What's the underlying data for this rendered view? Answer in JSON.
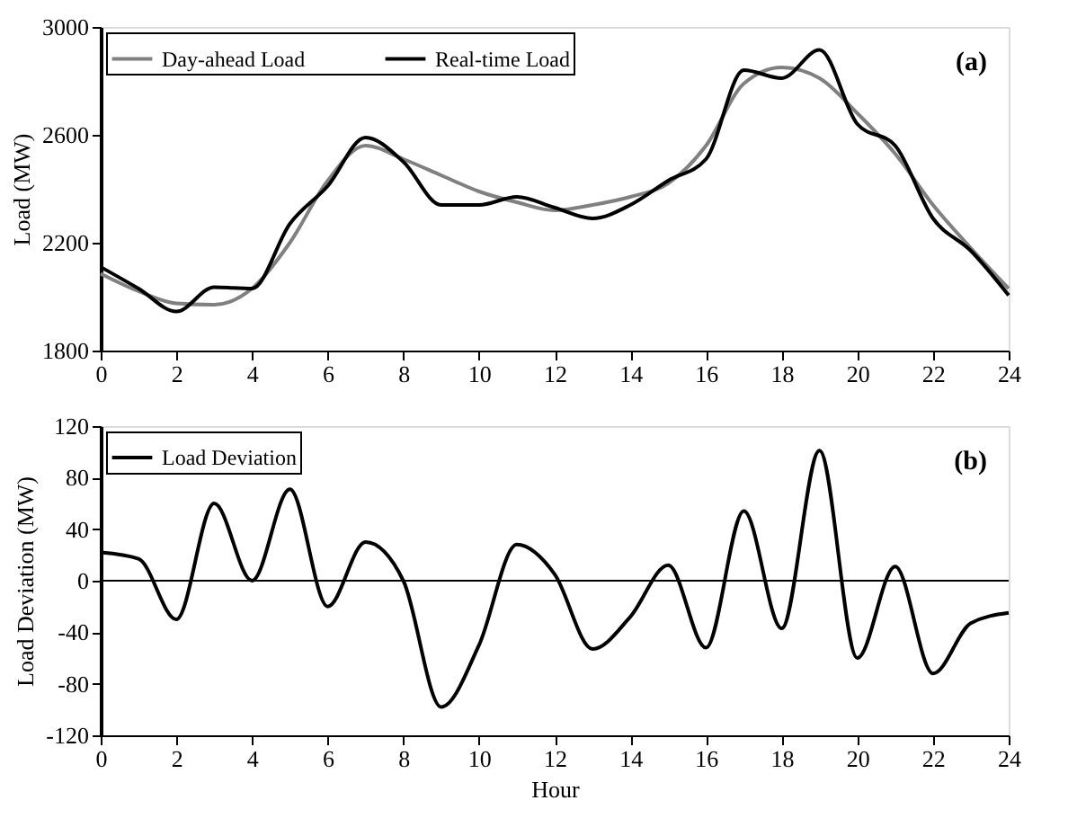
{
  "chart_data": [
    {
      "type": "line",
      "ylabel": "Load (MW)",
      "annotations": [
        "(a)"
      ],
      "xlim": [
        0,
        24
      ],
      "xticks": [
        0,
        2,
        4,
        6,
        8,
        10,
        12,
        14,
        16,
        18,
        20,
        22,
        24
      ],
      "ylim": [
        1800,
        3000
      ],
      "yticks": [
        1800,
        2200,
        2600,
        3000
      ],
      "grid": false,
      "legend": "top left",
      "marker": "none",
      "line_style": "solid",
      "x": [
        0,
        1,
        2,
        3,
        4,
        5,
        6,
        7,
        8,
        9,
        10,
        11,
        12,
        13,
        14,
        15,
        16,
        17,
        18,
        19,
        20,
        21,
        22,
        23,
        24
      ],
      "series": [
        {
          "name": "Day-ahead Load",
          "color": "#808080",
          "values": [
            2085,
            2020,
            1975,
            1970,
            2030,
            2200,
            2430,
            2560,
            2510,
            2450,
            2390,
            2350,
            2320,
            2340,
            2370,
            2420,
            2560,
            2790,
            2850,
            2810,
            2680,
            2530,
            2340,
            2180,
            2030
          ]
        },
        {
          "name": "Real-time Load",
          "color": "#000000",
          "values": [
            2110,
            2030,
            1945,
            2035,
            2030,
            2270,
            2410,
            2590,
            2500,
            2340,
            2340,
            2370,
            2330,
            2290,
            2340,
            2430,
            2510,
            2840,
            2810,
            2915,
            2640,
            2560,
            2290,
            2170,
            2005
          ]
        }
      ]
    },
    {
      "type": "line",
      "xlabel": "Hour",
      "ylabel": "Load  Deviation (MW)",
      "annotations": [
        "(b)"
      ],
      "xlim": [
        0,
        24
      ],
      "xticks": [
        0,
        2,
        4,
        6,
        8,
        10,
        12,
        14,
        16,
        18,
        20,
        22,
        24
      ],
      "ylim": [
        -120,
        120
      ],
      "yticks": [
        -120,
        -80,
        -40,
        0,
        40,
        80,
        120
      ],
      "ref_lines": [
        {
          "axis": "y",
          "value": 0,
          "color": "#000000"
        }
      ],
      "grid": false,
      "legend": "top left",
      "marker": "none",
      "line_style": "solid",
      "x": [
        0,
        1,
        2,
        3,
        4,
        5,
        6,
        7,
        8,
        9,
        10,
        11,
        12,
        13,
        14,
        15,
        16,
        17,
        18,
        19,
        20,
        21,
        22,
        23,
        24
      ],
      "series": [
        {
          "name": "Load Deviation",
          "color": "#000000",
          "values": [
            22,
            17,
            -30,
            60,
            0,
            71,
            -20,
            30,
            0,
            -98,
            -50,
            28,
            5,
            -53,
            -28,
            12,
            -52,
            54,
            -37,
            101,
            -60,
            11,
            -72,
            -33,
            -25
          ]
        }
      ]
    }
  ]
}
